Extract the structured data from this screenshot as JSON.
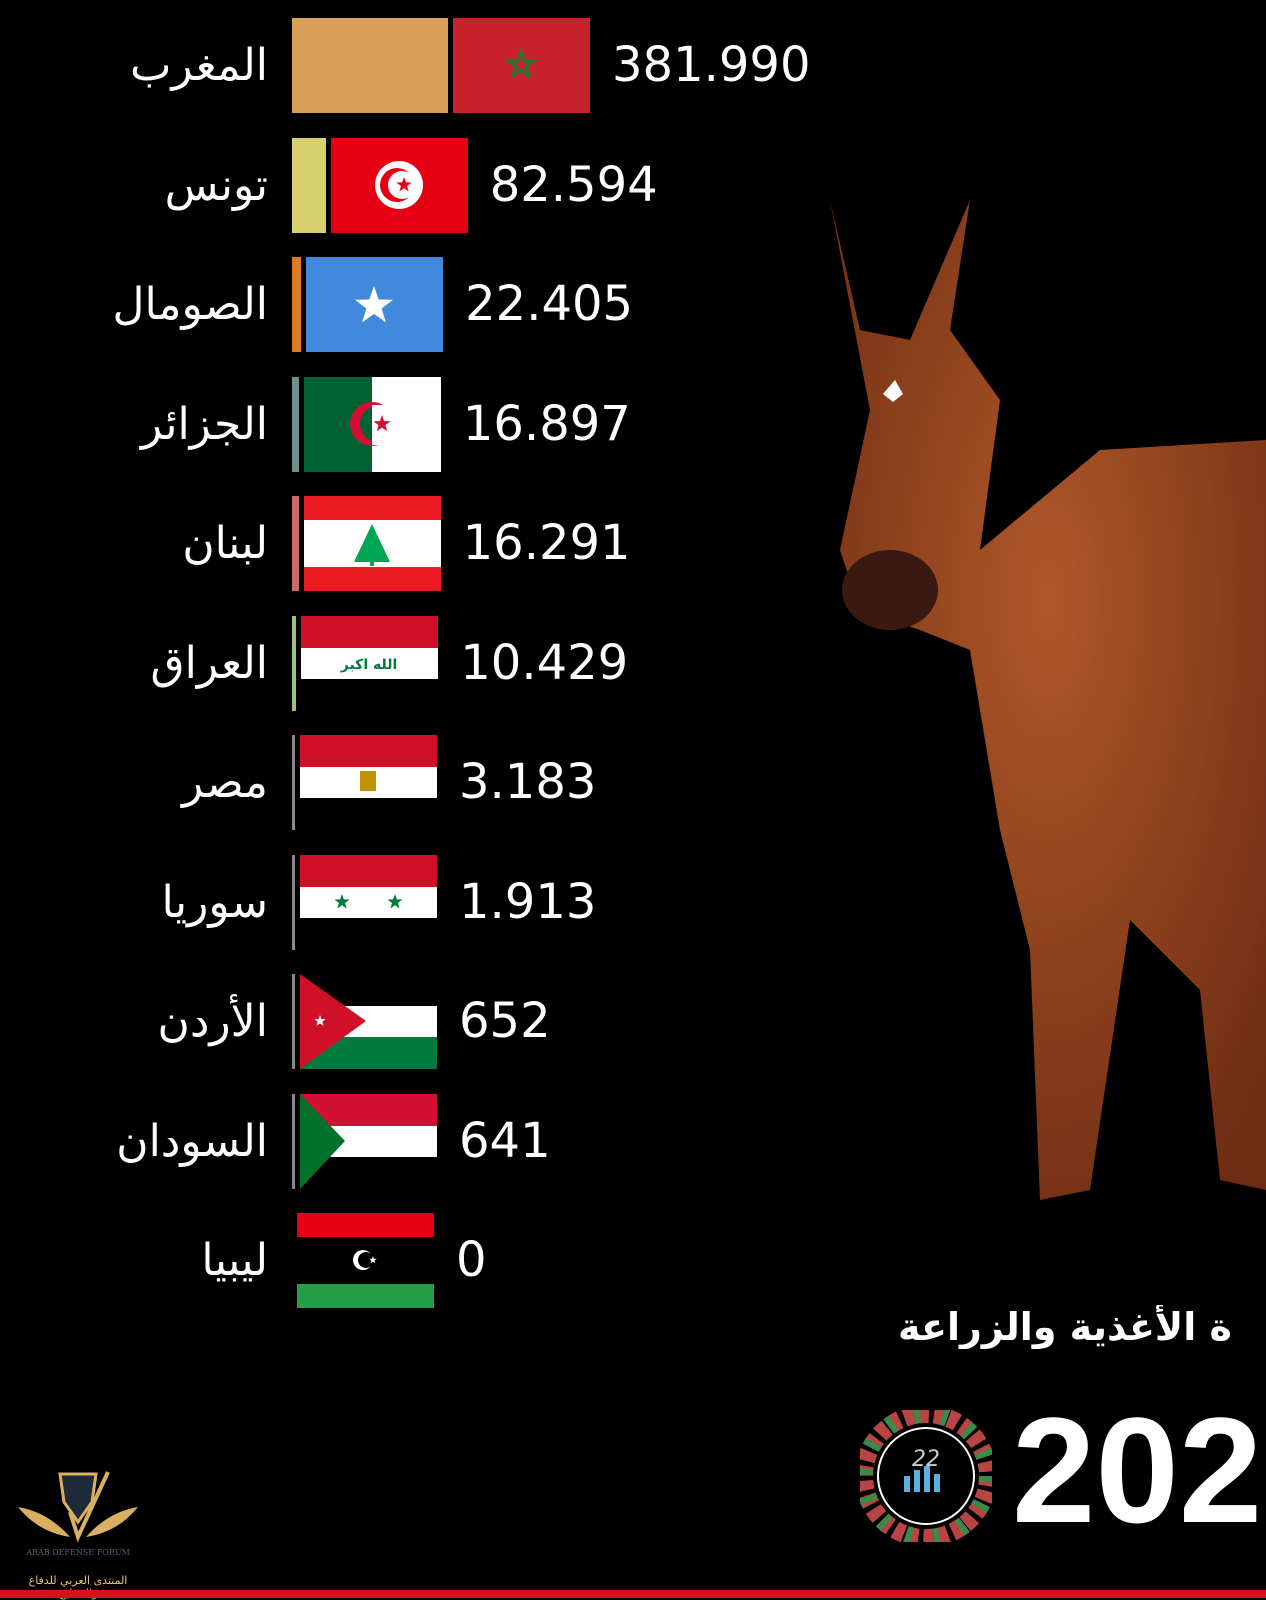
{
  "chart_data": {
    "type": "bar",
    "orientation": "horizontal",
    "subtitle": "ة الأغذية والزراعة",
    "year": "202",
    "categories": [
      "المغرب",
      "تونس",
      "الصومال",
      "الجزائر",
      "لبنان",
      "العراق",
      "مصر",
      "سوريا",
      "الأردن",
      "السودان",
      "ليبيا"
    ],
    "values": [
      381990,
      82594,
      22405,
      16897,
      16291,
      10429,
      3183,
      1913,
      652,
      641,
      0
    ],
    "value_labels": [
      "381.990",
      "82.594",
      "22.405",
      "16.897",
      "16.291",
      "10.429",
      "3.183",
      "1.913",
      "652",
      "641",
      "0"
    ],
    "flags": [
      "morocco",
      "tunisia",
      "somalia",
      "algeria",
      "lebanon",
      "iraq",
      "egypt",
      "syria",
      "jordan",
      "sudan",
      "libya"
    ],
    "bar_colors": [
      "#d9a05a",
      "#d8cf70",
      "#e07a20",
      "#6f8f8c",
      "#c96a6a",
      "#9fbf7a",
      "#888888",
      "#888888",
      "#888888",
      "#888888",
      "#888888"
    ]
  },
  "logos": {
    "channel_logo_text": "22 إحصائيات",
    "watermark_en": "ARAB DEFENSE FORUM",
    "watermark_ar": "المنتدى العربي للدفاع والتسليح"
  },
  "colors": {
    "background": "#000000",
    "footer_line": "#d6111b"
  }
}
